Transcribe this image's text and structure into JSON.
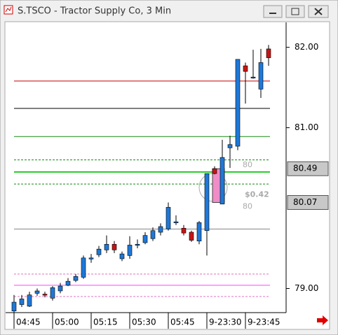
{
  "chart_data": {
    "type": "candlestick",
    "title": "S.TSCO - Tractor Supply Co, 3 Min",
    "categories": [
      "04:45",
      null,
      null,
      null,
      null,
      "05:00",
      null,
      null,
      null,
      null,
      "05:15",
      null,
      null,
      null,
      null,
      "05:30",
      null,
      null,
      null,
      null,
      "05:45",
      null,
      null,
      null,
      null,
      "9-23:30",
      null,
      null,
      null,
      null,
      "9-23:45",
      null,
      null,
      null
    ],
    "open": [
      78.72,
      78.8,
      78.78,
      78.94,
      78.93,
      78.88,
      78.97,
      79.04,
      79.1,
      79.14,
      79.38,
      79.42,
      79.48,
      79.55,
      79.37,
      79.41,
      79.55,
      79.57,
      79.62,
      79.7,
      79.74,
      79.83,
      79.75,
      79.7,
      79.59,
      79.72,
      80.49,
      80.05,
      80.75,
      80.77,
      81.77,
      81.63,
      81.48,
      81.98
    ],
    "high": [
      78.92,
      78.92,
      78.96,
      79.0,
      78.96,
      79.03,
      79.07,
      79.13,
      79.18,
      79.41,
      79.43,
      79.53,
      79.66,
      79.59,
      79.46,
      79.65,
      79.61,
      79.7,
      79.76,
      79.81,
      80.07,
      79.91,
      79.79,
      79.72,
      79.84,
      80.43,
      80.52,
      80.85,
      80.9,
      81.85,
      81.81,
      81.97,
      81.98,
      82.03
    ],
    "low": [
      78.7,
      78.77,
      78.77,
      78.91,
      78.89,
      78.85,
      78.94,
      79.03,
      79.08,
      79.12,
      79.32,
      79.39,
      79.44,
      79.44,
      79.34,
      79.37,
      79.5,
      79.55,
      79.59,
      79.66,
      79.72,
      79.79,
      79.66,
      79.58,
      79.55,
      79.41,
      80.42,
      80.05,
      80.5,
      80.72,
      81.3,
      81.61,
      81.37,
      81.77
    ],
    "close": [
      78.83,
      78.87,
      78.92,
      78.97,
      78.92,
      79.01,
      79.03,
      79.09,
      79.15,
      79.38,
      79.38,
      79.49,
      79.55,
      79.48,
      79.43,
      79.54,
      79.55,
      79.66,
      79.72,
      79.77,
      80.01,
      79.83,
      79.69,
      79.6,
      79.82,
      80.43,
      80.43,
      80.63,
      80.79,
      81.85,
      81.7,
      81.63,
      81.81,
      81.87
    ],
    "up_color": "#1e78d8",
    "down_color": "#c81414",
    "ylim": [
      78.7,
      82.31
    ],
    "yticks": [
      {
        "value": 79,
        "label": "79.00"
      },
      {
        "value": 81,
        "label": "81.00"
      },
      {
        "value": 82,
        "label": "82.00"
      }
    ],
    "levels": [
      {
        "value": 81.58,
        "color": "#c00000",
        "dashed": false
      },
      {
        "value": 81.24,
        "color": "#000000",
        "dashed": false
      },
      {
        "value": 80.89,
        "color": "#138a13",
        "dashed": false
      },
      {
        "value": 80.6,
        "color": "#138a13",
        "dashed": true
      },
      {
        "value": 80.45,
        "color": "#22cc22",
        "dashed": false
      },
      {
        "value": 80.3,
        "color": "#138a13",
        "dashed": true
      },
      {
        "value": 79.74,
        "color": "#888888",
        "dashed": false
      },
      {
        "value": 79.18,
        "color": "#e070c0",
        "dashed": true
      },
      {
        "value": 79.04,
        "color": "#ff44ff",
        "dashed": false
      },
      {
        "value": 78.9,
        "color": "#e070c0",
        "dashed": true
      }
    ],
    "price_markers": [
      80.49,
      80.07
    ],
    "annotations": [
      "80",
      "$0.42",
      "80"
    ]
  }
}
